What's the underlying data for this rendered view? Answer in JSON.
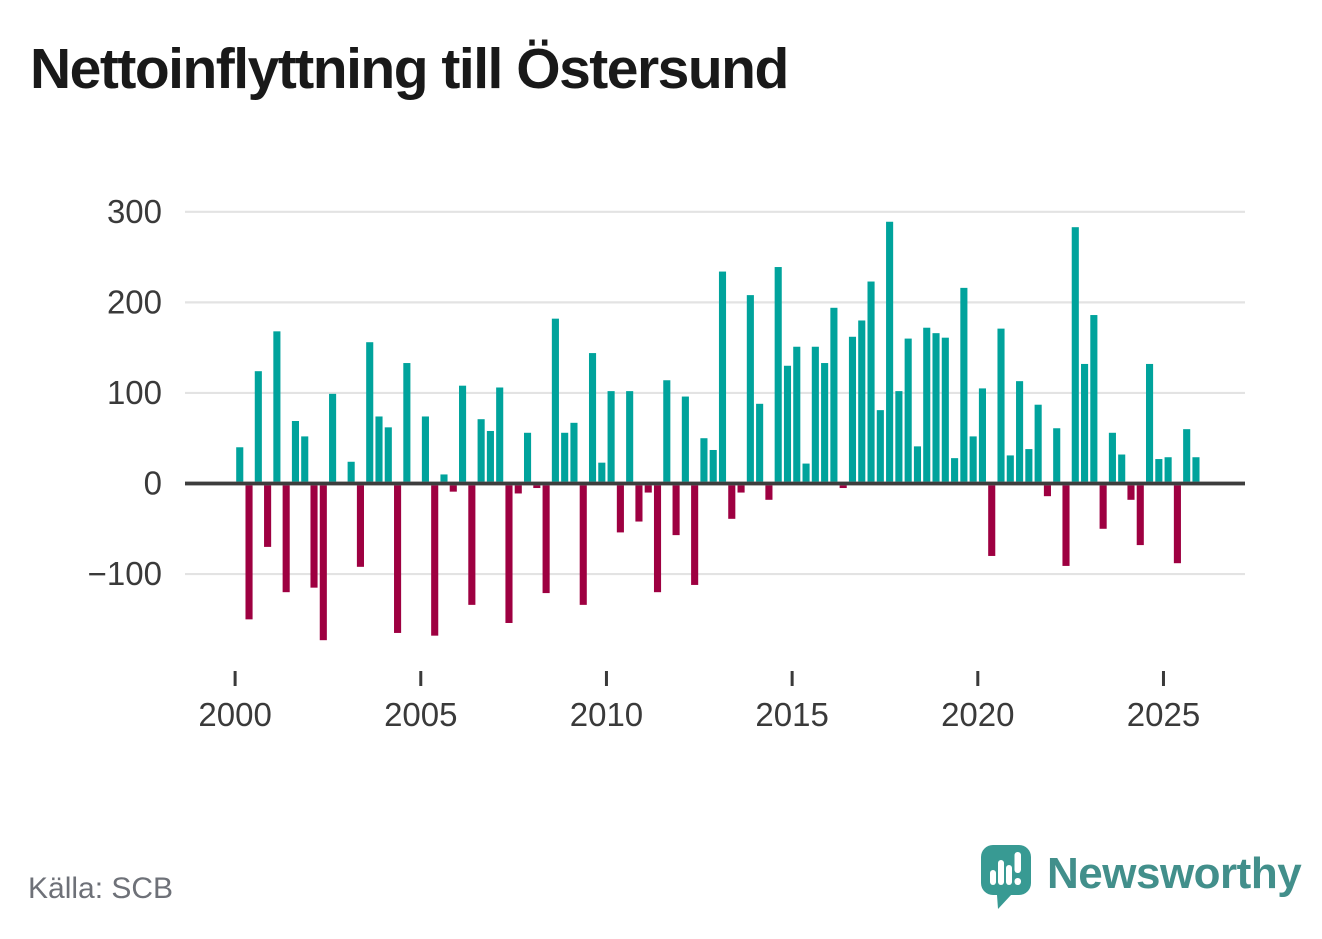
{
  "title": "Nettoinflyttning till Östersund",
  "source": "Källa: SCB",
  "logo": {
    "text": "Newsworthy"
  },
  "colors": {
    "positive": "#00a39c",
    "negative": "#9e0041",
    "axis": "#3d3d3d",
    "grid": "#e3e3e3",
    "tick_label": "#3a3a3a",
    "title_text": "#191919",
    "source_text": "#6e7178",
    "logo_bubble": "#389a93",
    "logo_text": "#428f8b"
  },
  "chart_data": {
    "type": "bar",
    "title": "Nettoinflyttning till Östersund",
    "xlabel": "",
    "ylabel": "",
    "x_unit": "quarter",
    "grid": true,
    "legend": "none",
    "ylim": [
      -180,
      310
    ],
    "y_ticks": [
      300,
      200,
      100,
      0,
      -100
    ],
    "y_tick_labels": [
      "300",
      "200",
      "100",
      "0",
      "−100"
    ],
    "x_tick_years": [
      2000,
      2005,
      2010,
      2015,
      2020,
      2025
    ],
    "x": [
      "2000Q1",
      "2000Q2",
      "2000Q3",
      "2000Q4",
      "2001Q1",
      "2001Q2",
      "2001Q3",
      "2001Q4",
      "2002Q1",
      "2002Q2",
      "2002Q3",
      "2002Q4",
      "2003Q1",
      "2003Q2",
      "2003Q3",
      "2003Q4",
      "2004Q1",
      "2004Q2",
      "2004Q3",
      "2004Q4",
      "2005Q1",
      "2005Q2",
      "2005Q3",
      "2005Q4",
      "2006Q1",
      "2006Q2",
      "2006Q3",
      "2006Q4",
      "2007Q1",
      "2007Q2",
      "2007Q3",
      "2007Q4",
      "2008Q1",
      "2008Q2",
      "2008Q3",
      "2008Q4",
      "2009Q1",
      "2009Q2",
      "2009Q3",
      "2009Q4",
      "2010Q1",
      "2010Q2",
      "2010Q3",
      "2010Q4",
      "2011Q1",
      "2011Q2",
      "2011Q3",
      "2011Q4",
      "2012Q1",
      "2012Q2",
      "2012Q3",
      "2012Q4",
      "2013Q1",
      "2013Q2",
      "2013Q3",
      "2013Q4",
      "2014Q1",
      "2014Q2",
      "2014Q3",
      "2014Q4",
      "2015Q1",
      "2015Q2",
      "2015Q3",
      "2015Q4",
      "2016Q1",
      "2016Q2",
      "2016Q3",
      "2016Q4",
      "2017Q1",
      "2017Q2",
      "2017Q3",
      "2017Q4",
      "2018Q1",
      "2018Q2",
      "2018Q3",
      "2018Q4",
      "2019Q1",
      "2019Q2",
      "2019Q3",
      "2019Q4",
      "2020Q1",
      "2020Q2",
      "2020Q3",
      "2020Q4",
      "2021Q1",
      "2021Q2",
      "2021Q3",
      "2021Q4",
      "2022Q1",
      "2022Q2",
      "2022Q3",
      "2022Q4",
      "2023Q1",
      "2023Q2",
      "2023Q3",
      "2023Q4",
      "2024Q1",
      "2024Q2",
      "2024Q3",
      "2024Q4",
      "2025Q1",
      "2025Q2",
      "2025Q3",
      "2025Q4"
    ],
    "values": [
      40,
      -150,
      124,
      -70,
      168,
      -120,
      69,
      52,
      -115,
      -173,
      99,
      0,
      24,
      -92,
      156,
      74,
      62,
      -165,
      133,
      0,
      74,
      -168,
      10,
      -9,
      108,
      -134,
      71,
      58,
      106,
      -154,
      -11,
      56,
      -5,
      -121,
      182,
      56,
      67,
      -134,
      144,
      23,
      102,
      -54,
      102,
      -42,
      -10,
      -120,
      114,
      -57,
      96,
      -112,
      50,
      37,
      234,
      -39,
      -10,
      208,
      88,
      -18,
      239,
      130,
      151,
      22,
      151,
      133,
      194,
      -5,
      162,
      180,
      223,
      81,
      289,
      102,
      160,
      41,
      172,
      166,
      161,
      28,
      216,
      52,
      105,
      -80,
      171,
      31,
      113,
      38,
      87,
      -14,
      61,
      -91,
      283,
      132,
      186,
      -50,
      56,
      32,
      -18,
      -68,
      132,
      27,
      29,
      -88,
      60,
      29
    ]
  }
}
